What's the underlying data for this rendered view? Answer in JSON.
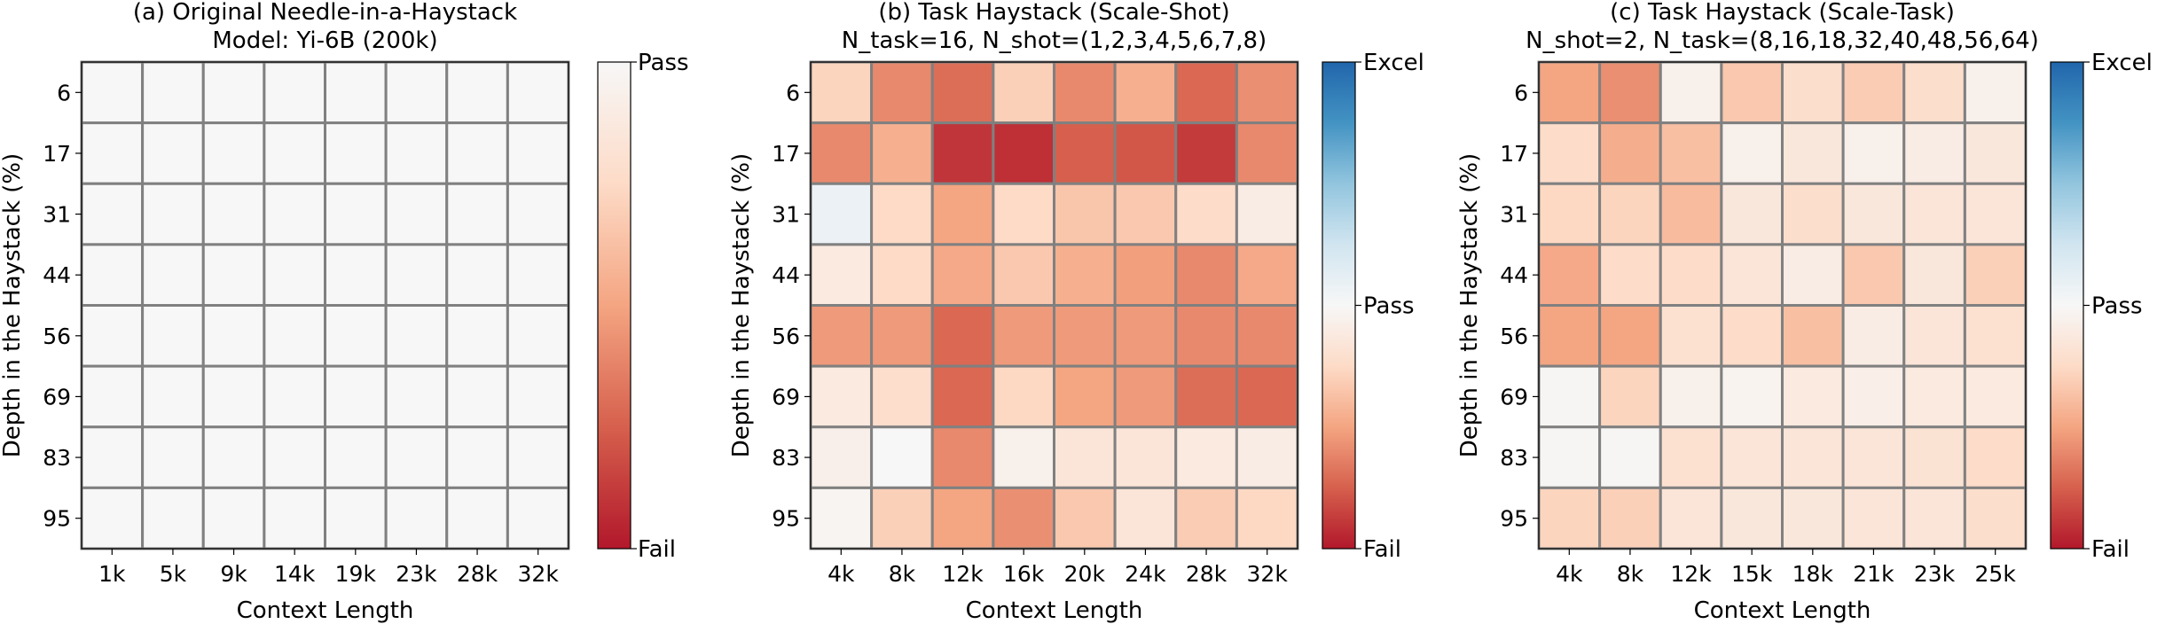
{
  "colors": {
    "fail": "#b2182b",
    "mid": "#f7f7f7",
    "excel": "#2166ac",
    "grid": "#808080"
  },
  "chart_data": [
    {
      "type": "heatmap",
      "title": "(a) Original Needle-in-a-Haystack",
      "subtitle": "Model: Yi-6B (200k)",
      "xlabel": "Context Length",
      "ylabel": "Depth in the Haystack (%)",
      "x_categories": [
        "1k",
        "5k",
        "9k",
        "14k",
        "19k",
        "23k",
        "28k",
        "32k"
      ],
      "y_categories": [
        "6",
        "17",
        "31",
        "44",
        "56",
        "69",
        "83",
        "95"
      ],
      "colorbar": {
        "ticks": [
          "Pass",
          "Fail"
        ],
        "range": [
          0,
          1
        ]
      },
      "values": [
        [
          1,
          1,
          1,
          1,
          1,
          1,
          1,
          1
        ],
        [
          1,
          1,
          1,
          1,
          1,
          1,
          1,
          1
        ],
        [
          1,
          1,
          1,
          1,
          1,
          1,
          1,
          1
        ],
        [
          1,
          1,
          1,
          1,
          1,
          1,
          1,
          1
        ],
        [
          1,
          1,
          1,
          1,
          1,
          1,
          1,
          1
        ],
        [
          1,
          1,
          1,
          1,
          1,
          1,
          1,
          1
        ],
        [
          1,
          1,
          1,
          1,
          1,
          1,
          1,
          1
        ],
        [
          1,
          1,
          1,
          1,
          1,
          1,
          1,
          1
        ]
      ]
    },
    {
      "type": "heatmap",
      "title": "(b) Task Haystack (Scale-Shot)",
      "subtitle": "N_task=16, N_shot=(1,2,3,4,5,6,7,8)",
      "xlabel": "Context Length",
      "ylabel": "Depth in the Haystack (%)",
      "x_categories": [
        "4k",
        "8k",
        "12k",
        "16k",
        "20k",
        "24k",
        "28k",
        "32k"
      ],
      "y_categories": [
        "6",
        "17",
        "31",
        "44",
        "56",
        "69",
        "83",
        "95"
      ],
      "colorbar": {
        "ticks": [
          "Excel",
          "Pass",
          "Fail"
        ],
        "range": [
          0,
          2
        ]
      },
      "values": [
        [
          0.72,
          0.4,
          0.3,
          0.7,
          0.4,
          0.55,
          0.28,
          0.42
        ],
        [
          0.4,
          0.55,
          0.1,
          0.08,
          0.25,
          0.22,
          0.12,
          0.4
        ],
        [
          1.08,
          0.75,
          0.5,
          0.75,
          0.65,
          0.66,
          0.76,
          0.9
        ],
        [
          0.88,
          0.75,
          0.52,
          0.66,
          0.55,
          0.48,
          0.4,
          0.52
        ],
        [
          0.46,
          0.46,
          0.28,
          0.46,
          0.46,
          0.46,
          0.4,
          0.4
        ],
        [
          0.88,
          0.77,
          0.28,
          0.74,
          0.5,
          0.46,
          0.3,
          0.28
        ],
        [
          0.93,
          1.0,
          0.4,
          0.94,
          0.84,
          0.84,
          0.88,
          0.9
        ],
        [
          0.97,
          0.7,
          0.5,
          0.42,
          0.66,
          0.84,
          0.68,
          0.74
        ]
      ]
    },
    {
      "type": "heatmap",
      "title": "(c) Task Haystack (Scale-Task)",
      "subtitle": "N_shot=2, N_task=(8,16,18,32,40,48,56,64)",
      "xlabel": "Context Length",
      "ylabel": "Depth in the Haystack (%)",
      "x_categories": [
        "4k",
        "8k",
        "12k",
        "15k",
        "18k",
        "21k",
        "23k",
        "25k"
      ],
      "y_categories": [
        "6",
        "17",
        "31",
        "44",
        "56",
        "69",
        "83",
        "95"
      ],
      "colorbar": {
        "ticks": [
          "Excel",
          "Pass",
          "Fail"
        ],
        "range": [
          0,
          2
        ]
      },
      "values": [
        [
          0.5,
          0.42,
          0.94,
          0.66,
          0.78,
          0.68,
          0.78,
          0.94
        ],
        [
          0.76,
          0.54,
          0.62,
          0.94,
          0.86,
          0.94,
          0.9,
          0.86
        ],
        [
          0.74,
          0.72,
          0.6,
          0.86,
          0.78,
          0.86,
          0.84,
          0.84
        ],
        [
          0.52,
          0.76,
          0.76,
          0.84,
          0.9,
          0.66,
          0.86,
          0.7
        ],
        [
          0.5,
          0.5,
          0.8,
          0.76,
          0.62,
          0.9,
          0.84,
          0.8
        ],
        [
          0.98,
          0.72,
          0.94,
          0.96,
          0.88,
          0.92,
          0.88,
          0.88
        ],
        [
          0.98,
          0.98,
          0.8,
          0.84,
          0.84,
          0.84,
          0.82,
          0.76
        ],
        [
          0.72,
          0.7,
          0.84,
          0.86,
          0.86,
          0.84,
          0.84,
          0.78
        ]
      ]
    }
  ]
}
